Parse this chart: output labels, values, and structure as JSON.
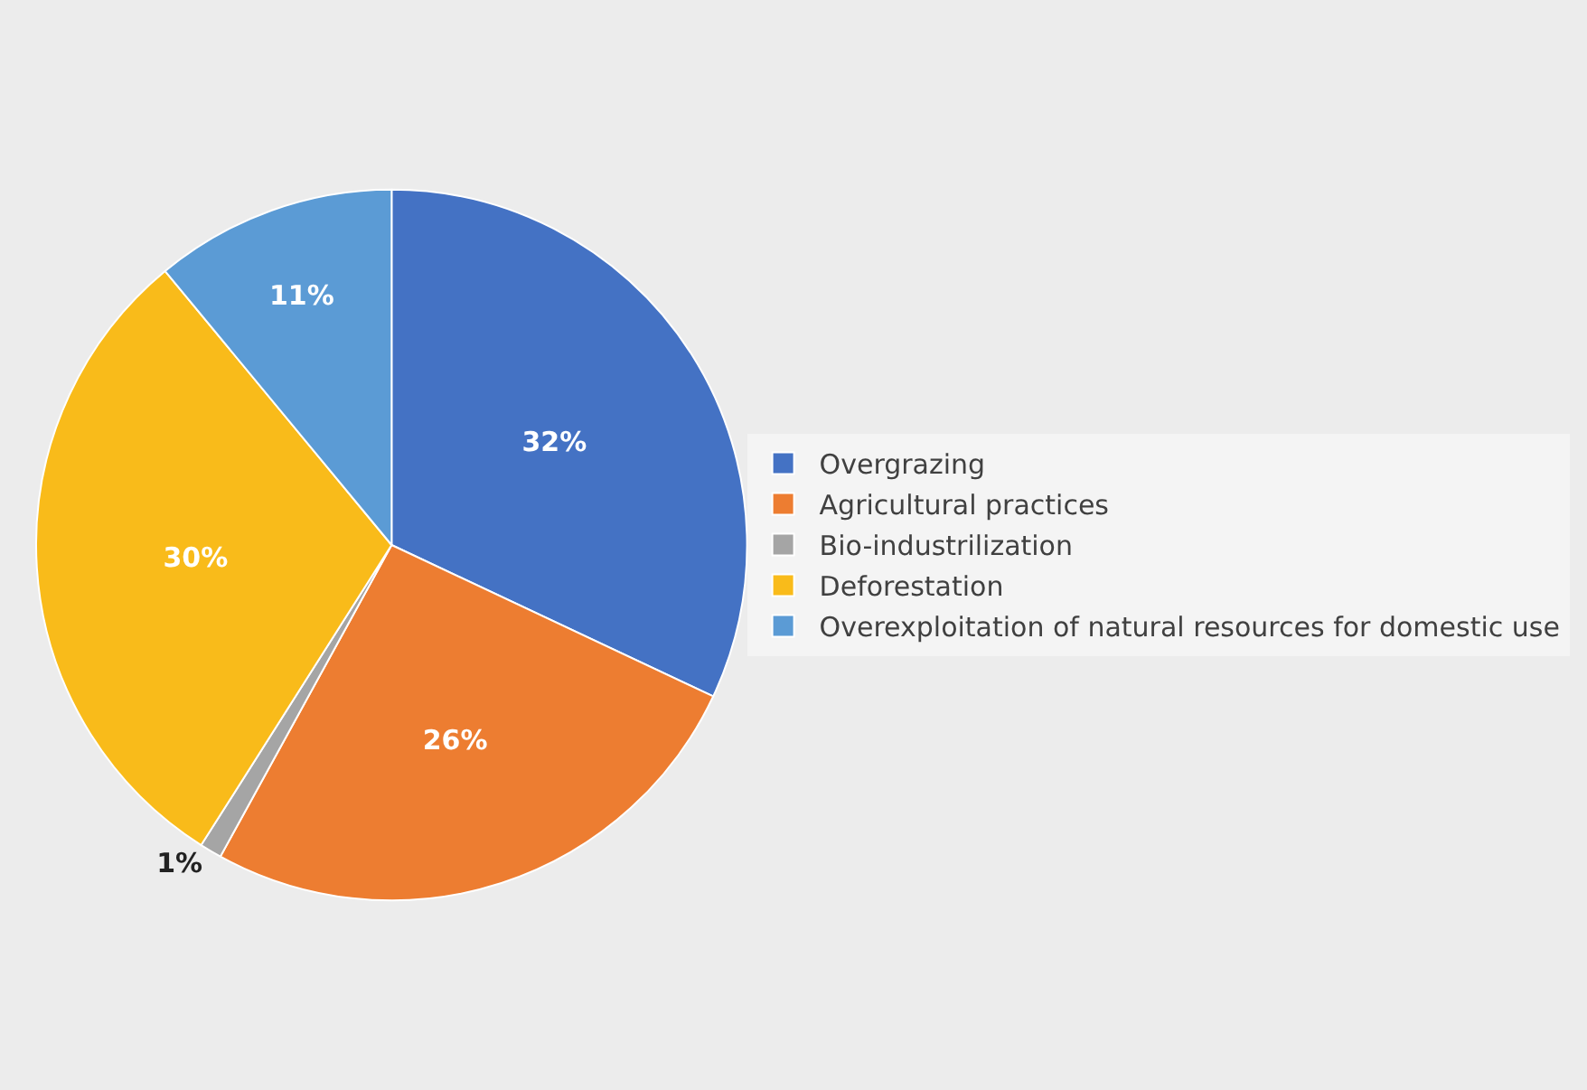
{
  "chart_data": {
    "type": "pie",
    "categories": [
      "Overgrazing",
      "Agricultural practices",
      "Bio-industrilization",
      "Deforestation",
      "Overexploitation of natural resources for domestic use"
    ],
    "values": [
      32,
      26,
      1,
      30,
      11
    ],
    "colors": [
      "#4472c4",
      "#ed7d31",
      "#a5a5a5",
      "#f9bb1a",
      "#5b9bd5"
    ],
    "value_labels": [
      "32%",
      "26%",
      "1%",
      "30%",
      "11%"
    ],
    "legend": "right"
  }
}
